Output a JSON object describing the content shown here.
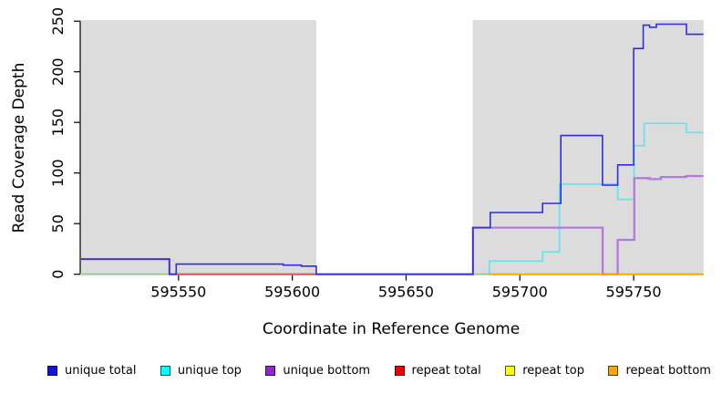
{
  "figure": {
    "background": "#ffffff",
    "plot_background": "#ffffff",
    "shaded_region_color": "#dcdcdc"
  },
  "x_axis": {
    "label": "Coordinate in Reference Genome",
    "ticks": [
      595550,
      595600,
      595650,
      595700,
      595750
    ],
    "range": [
      595506.8,
      595780.7
    ]
  },
  "y_axis": {
    "label": "Read Coverage Depth",
    "ticks": [
      0,
      50,
      100,
      150,
      200,
      250
    ],
    "range": [
      0,
      250
    ]
  },
  "legend": {
    "items": [
      {
        "label": "unique total",
        "color": "#1414e0"
      },
      {
        "label": "unique top",
        "color": "#00ffff"
      },
      {
        "label": "unique bottom",
        "color": "#9326ce"
      },
      {
        "label": "repeat total",
        "color": "#ee0000"
      },
      {
        "label": "repeat top",
        "color": "#ffff00"
      },
      {
        "label": "repeat bottom",
        "color": "#ffa500"
      }
    ]
  },
  "chart_data": {
    "type": "step",
    "xlabel": "Coordinate in Reference Genome",
    "ylabel": "Read Coverage Depth",
    "xlim": [
      595506.8,
      595780.7
    ],
    "ylim": [
      0,
      250
    ],
    "grid": false,
    "legend_position": "bottom",
    "shaded_regions": [
      {
        "x1": 595506.8,
        "x2": 595610.5,
        "color": "#dcdcdc"
      },
      {
        "x1": 595679.3,
        "x2": 595780.7,
        "color": "#dcdcdc"
      }
    ],
    "white_gap_region": {
      "x1": 595610.5,
      "x2": 595679.3
    },
    "x_end": 595780.7,
    "draw_order": [
      "repeat top",
      "unique top",
      "unique bottom",
      "repeat total",
      "gap baseline marker",
      "unique total",
      "repeat bottom"
    ],
    "series": [
      {
        "name": "unique total",
        "color": "#2e2edf",
        "width": 1.6,
        "steps": [
          [
            595506.8,
            15
          ],
          [
            595546,
            0
          ],
          [
            595549,
            10
          ],
          [
            595596,
            9
          ],
          [
            595604,
            8
          ],
          [
            595610.5,
            0
          ],
          [
            595679.4,
            46
          ],
          [
            595687,
            61
          ],
          [
            595710,
            70
          ],
          [
            595718,
            137
          ],
          [
            595736.3,
            88
          ],
          [
            595743,
            108
          ],
          [
            595750,
            223
          ],
          [
            595754.2,
            246
          ],
          [
            595757,
            244
          ],
          [
            595760,
            247
          ],
          [
            595773.2,
            237
          ]
        ]
      },
      {
        "name": "unique top",
        "color": "#64e4e8",
        "width": 1.7,
        "steps": [
          [
            595506.8,
            0
          ],
          [
            595686.6,
            13
          ],
          [
            595710,
            22
          ],
          [
            595717.4,
            89
          ],
          [
            595743,
            74
          ],
          [
            595750.2,
            127
          ],
          [
            595754.6,
            149
          ],
          [
            595773.2,
            140
          ]
        ]
      },
      {
        "name": "unique bottom",
        "color": "#b27bdb",
        "width": 2.3,
        "steps": [
          [
            595506.8,
            15
          ],
          [
            595546,
            0
          ],
          [
            595679.4,
            46
          ],
          [
            595736.4,
            0
          ],
          [
            595743,
            34
          ],
          [
            595750.3,
            95
          ],
          [
            595757,
            94
          ],
          [
            595762,
            96
          ],
          [
            595773,
            97
          ]
        ]
      },
      {
        "name": "repeat total",
        "color": "#e05a5a",
        "width": 1.5,
        "steps": [
          [
            595506.8,
            0
          ]
        ]
      },
      {
        "name": "repeat top",
        "color": "#ffff33",
        "width": 1.5,
        "steps": [
          [
            595506.8,
            0
          ]
        ]
      },
      {
        "name": "repeat bottom",
        "color": "#ffa500",
        "width": 2.0,
        "steps": [
          [
            595686.6,
            0
          ]
        ]
      },
      {
        "name": "gap baseline marker",
        "color": "#8fce8f",
        "width": 1.8,
        "segments": [
          [
            595506.8,
            595546
          ],
          [
            595679.3,
            595686.6
          ]
        ]
      }
    ]
  }
}
